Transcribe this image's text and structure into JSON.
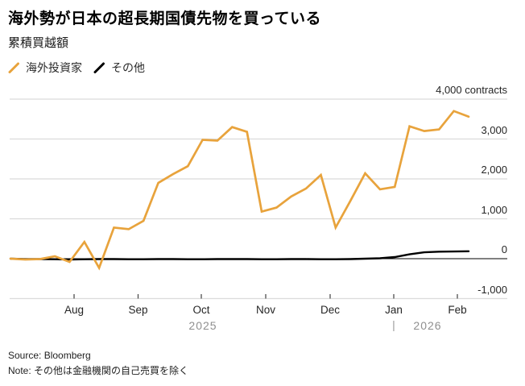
{
  "header": {
    "title": "海外勢が日本の超長期国債先物を買っている",
    "subtitle": "累積買越額"
  },
  "legend": [
    {
      "label": "海外投資家",
      "color": "#E8A33C"
    },
    {
      "label": "その他",
      "color": "#000000"
    }
  ],
  "axis": {
    "y_labels": [
      "4,000 contracts",
      "3,000",
      "2,000",
      "1,000",
      "0",
      "-1,000"
    ],
    "x_labels": [
      "Aug",
      "Sep",
      "Oct",
      "Nov",
      "Dec",
      "Jan",
      "Feb"
    ],
    "year_left": "2025",
    "year_separator": "|",
    "year_right": "2026"
  },
  "footer": {
    "source": "Source: Bloomberg",
    "note": "Note: その他は金融機関の自己売買を除く"
  },
  "colors": {
    "accent_orange": "#E8A33C",
    "series_black": "#000000",
    "gridline": "#DBDBDB",
    "zero_line": "#000000",
    "tick": "#4d4d4d",
    "year_gray": "#8f8f8f"
  },
  "chart_data": {
    "type": "line",
    "title": "累積買越額",
    "subtitle_unit": "contracts",
    "x_unit": "weekly points, mid-Jul 2025 to mid-Feb 2026",
    "x_tick_months": [
      "Aug",
      "Sep",
      "Oct",
      "Nov",
      "Dec",
      "Jan",
      "Feb"
    ],
    "years": [
      "2025",
      "2026"
    ],
    "ylim": [
      -1000,
      4000
    ],
    "y_ticks": [
      4000,
      3000,
      2000,
      1000,
      0,
      -1000
    ],
    "grid": "horizontal-only",
    "legend_position": "top-left",
    "series": [
      {
        "name": "海外投資家",
        "color": "#E8A33C",
        "values": [
          0,
          -20,
          -10,
          60,
          -80,
          420,
          -230,
          780,
          740,
          950,
          1900,
          2120,
          2320,
          2980,
          2960,
          3300,
          3180,
          1180,
          1280,
          1560,
          1760,
          2100,
          780,
          1450,
          2140,
          1740,
          1800,
          3320,
          3200,
          3240,
          3700,
          3560
        ]
      },
      {
        "name": "その他",
        "color": "#000000",
        "values": [
          0,
          -10,
          -10,
          -15,
          -20,
          -15,
          -10,
          -10,
          -15,
          -15,
          -10,
          -10,
          -15,
          -15,
          -10,
          -10,
          -10,
          -15,
          -15,
          -10,
          -10,
          -15,
          -15,
          -10,
          0,
          10,
          40,
          110,
          160,
          175,
          180,
          185
        ]
      }
    ]
  }
}
